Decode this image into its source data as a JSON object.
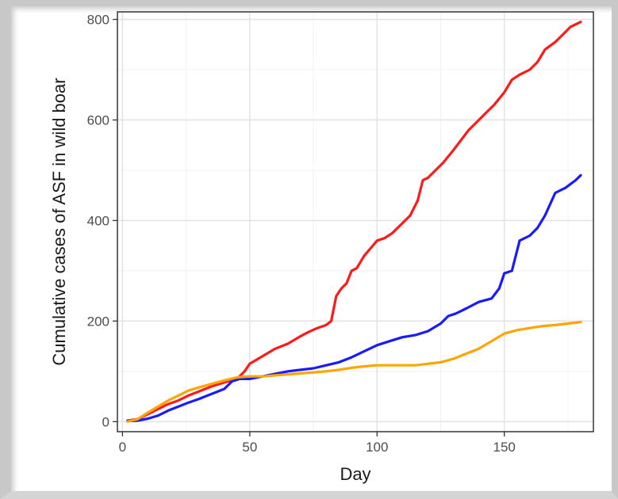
{
  "chart_data": {
    "type": "line",
    "xlabel": "Day",
    "ylabel": "Cumulative cases of ASF in wild boar",
    "xlim": [
      -2,
      185
    ],
    "ylim": [
      -20,
      815
    ],
    "xticks": [
      0,
      50,
      100,
      150
    ],
    "yticks": [
      0,
      200,
      400,
      600,
      800
    ],
    "grid": true,
    "legend": "none",
    "series": [
      {
        "color": "#ff1a1a",
        "x": [
          2,
          6,
          10,
          14,
          18,
          22,
          26,
          30,
          35,
          40,
          45,
          48,
          50,
          55,
          60,
          65,
          70,
          73,
          76,
          80,
          82,
          84,
          86,
          88,
          90,
          92,
          95,
          98,
          100,
          103,
          106,
          110,
          113,
          116,
          118,
          120,
          123,
          126,
          130,
          133,
          136,
          140,
          143,
          146,
          150,
          153,
          156,
          160,
          163,
          166,
          170,
          173,
          176,
          180
        ],
        "y": [
          2,
          5,
          15,
          25,
          35,
          42,
          52,
          60,
          70,
          78,
          85,
          100,
          115,
          130,
          145,
          155,
          170,
          178,
          185,
          192,
          200,
          250,
          265,
          275,
          300,
          305,
          330,
          348,
          360,
          365,
          375,
          395,
          410,
          440,
          480,
          485,
          500,
          515,
          540,
          560,
          580,
          600,
          615,
          630,
          655,
          680,
          690,
          700,
          715,
          740,
          755,
          770,
          785,
          795
        ]
      },
      {
        "color": "#1a1aff",
        "x": [
          2,
          6,
          10,
          14,
          18,
          22,
          26,
          30,
          35,
          40,
          43,
          46,
          50,
          55,
          60,
          65,
          70,
          75,
          80,
          85,
          90,
          95,
          100,
          105,
          110,
          115,
          120,
          125,
          128,
          131,
          135,
          140,
          145,
          148,
          150,
          153,
          156,
          160,
          163,
          166,
          170,
          174,
          178,
          180
        ],
        "y": [
          1,
          2,
          6,
          12,
          22,
          30,
          38,
          45,
          55,
          65,
          80,
          85,
          85,
          90,
          95,
          100,
          103,
          106,
          112,
          118,
          128,
          140,
          152,
          160,
          168,
          172,
          180,
          195,
          210,
          215,
          225,
          238,
          245,
          265,
          295,
          300,
          360,
          370,
          385,
          410,
          455,
          465,
          480,
          490
        ]
      },
      {
        "color": "#ffa500",
        "x": [
          2,
          6,
          10,
          14,
          18,
          22,
          26,
          30,
          35,
          40,
          45,
          50,
          55,
          60,
          65,
          70,
          75,
          80,
          85,
          90,
          95,
          100,
          105,
          110,
          115,
          120,
          125,
          130,
          135,
          140,
          145,
          150,
          155,
          160,
          165,
          170,
          175,
          180
        ],
        "y": [
          0,
          5,
          18,
          30,
          42,
          52,
          62,
          68,
          75,
          82,
          88,
          90,
          90,
          92,
          94,
          96,
          98,
          100,
          103,
          107,
          110,
          112,
          112,
          112,
          112,
          115,
          118,
          125,
          135,
          145,
          160,
          175,
          182,
          186,
          190,
          192,
          195,
          198
        ]
      }
    ]
  }
}
